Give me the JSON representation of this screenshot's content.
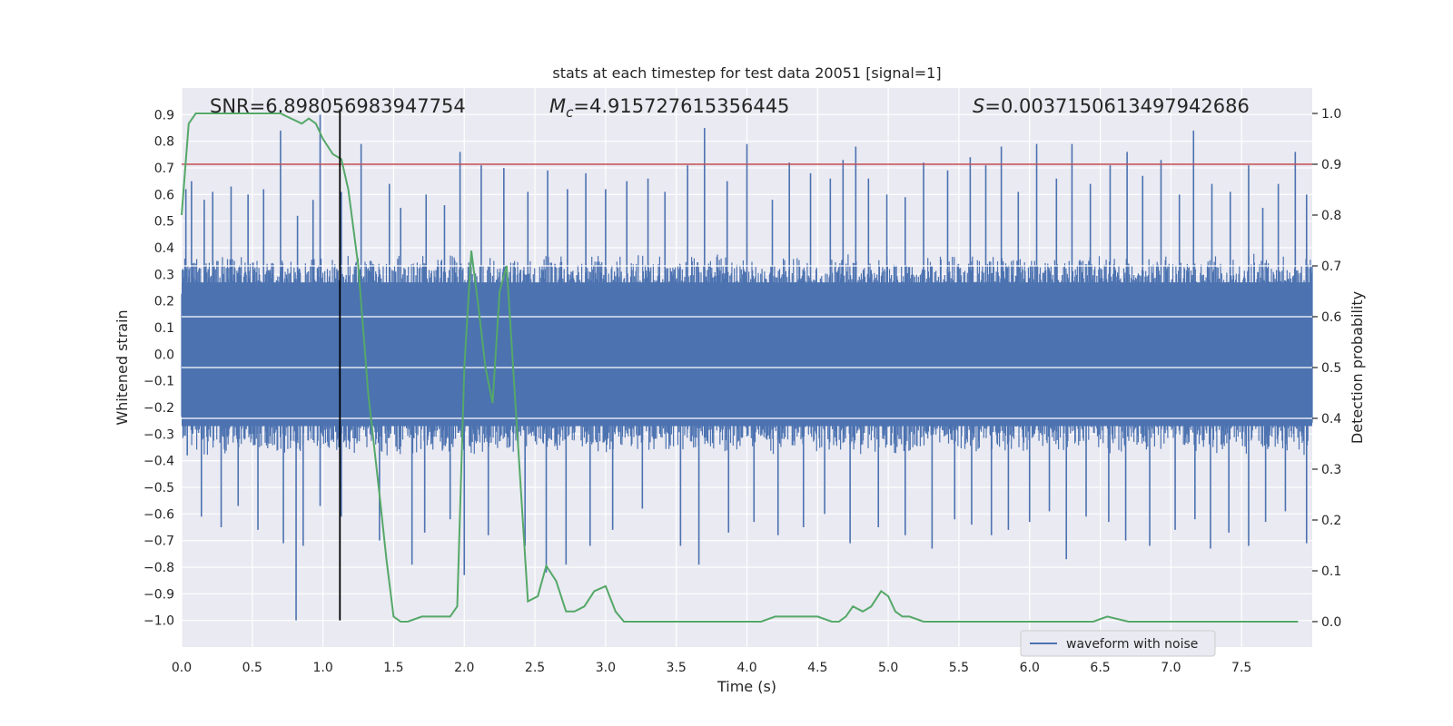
{
  "chart_data": {
    "type": "line",
    "title": "stats at each timestep for test data 20051 [signal=1]",
    "xlabel": "Time (s)",
    "ylabel": "Whitened strain",
    "ylabel_right": "Detection probability",
    "xlim": [
      0.0,
      8.0
    ],
    "ylim": [
      -1.1,
      1.0
    ],
    "ylim_right": [
      -0.05,
      1.05
    ],
    "x_ticks": [
      "0.0",
      "0.5",
      "1.0",
      "1.5",
      "2.0",
      "2.5",
      "3.0",
      "3.5",
      "4.0",
      "4.5",
      "5.0",
      "5.5",
      "6.0",
      "6.5",
      "7.0",
      "7.5"
    ],
    "x_tick_values": [
      0.0,
      0.5,
      1.0,
      1.5,
      2.0,
      2.5,
      3.0,
      3.5,
      4.0,
      4.5,
      5.0,
      5.5,
      6.0,
      6.5,
      7.0,
      7.5
    ],
    "y_ticks": [
      "−1.0",
      "−0.9",
      "−0.8",
      "−0.7",
      "−0.6",
      "−0.5",
      "−0.4",
      "−0.3",
      "−0.2",
      "−0.1",
      "0.0",
      "0.1",
      "0.2",
      "0.3",
      "0.4",
      "0.5",
      "0.6",
      "0.7",
      "0.8",
      "0.9"
    ],
    "y_tick_values": [
      -1.0,
      -0.9,
      -0.8,
      -0.7,
      -0.6,
      -0.5,
      -0.4,
      -0.3,
      -0.2,
      -0.1,
      0.0,
      0.1,
      0.2,
      0.3,
      0.4,
      0.5,
      0.6,
      0.7,
      0.8,
      0.9
    ],
    "y_right_ticks": [
      "0.0",
      "0.1",
      "0.2",
      "0.3",
      "0.4",
      "0.5",
      "0.6",
      "0.7",
      "0.8",
      "0.9",
      "1.0"
    ],
    "y_right_tick_values": [
      0.0,
      0.1,
      0.2,
      0.3,
      0.4,
      0.5,
      0.6,
      0.7,
      0.8,
      0.9,
      1.0
    ],
    "annotations": {
      "snr": "SNR=6.898056983947754",
      "mc_symbol": "M",
      "mc_sub": "c",
      "mc_value": "=4.915727615356445",
      "s_symbol": "S",
      "s_value": "=0.0037150613497942686"
    },
    "series": [
      {
        "name": "waveform with noise",
        "kind": "noise-band",
        "color": "#4c72b0",
        "duration": 8.0,
        "band_low": -0.33,
        "band_high": 0.33,
        "spikes_high": [
          [
            0.03,
            0.62
          ],
          [
            0.07,
            0.65
          ],
          [
            0.16,
            0.58
          ],
          [
            0.22,
            0.61
          ],
          [
            0.35,
            0.63
          ],
          [
            0.47,
            0.6
          ],
          [
            0.58,
            0.62
          ],
          [
            0.7,
            0.84
          ],
          [
            0.82,
            0.52
          ],
          [
            0.93,
            0.58
          ],
          [
            0.98,
            0.9
          ],
          [
            1.13,
            0.61
          ],
          [
            1.27,
            0.79
          ],
          [
            1.47,
            0.64
          ],
          [
            1.55,
            0.55
          ],
          [
            1.73,
            0.6
          ],
          [
            1.86,
            0.56
          ],
          [
            1.97,
            0.76
          ],
          [
            2.12,
            0.71
          ],
          [
            2.28,
            0.7
          ],
          [
            2.45,
            0.61
          ],
          [
            2.59,
            0.69
          ],
          [
            2.73,
            0.62
          ],
          [
            2.86,
            0.68
          ],
          [
            3.0,
            0.62
          ],
          [
            3.15,
            0.65
          ],
          [
            3.3,
            0.66
          ],
          [
            3.42,
            0.61
          ],
          [
            3.58,
            0.71
          ],
          [
            3.7,
            0.85
          ],
          [
            3.86,
            0.65
          ],
          [
            4.0,
            0.79
          ],
          [
            4.18,
            0.58
          ],
          [
            4.3,
            0.72
          ],
          [
            4.45,
            0.68
          ],
          [
            4.59,
            0.66
          ],
          [
            4.68,
            0.73
          ],
          [
            4.77,
            0.78
          ],
          [
            4.86,
            0.66
          ],
          [
            4.99,
            0.6
          ],
          [
            5.12,
            0.59
          ],
          [
            5.25,
            0.72
          ],
          [
            5.42,
            0.69
          ],
          [
            5.58,
            0.74
          ],
          [
            5.69,
            0.71
          ],
          [
            5.8,
            0.78
          ],
          [
            5.92,
            0.61
          ],
          [
            6.05,
            0.79
          ],
          [
            6.19,
            0.66
          ],
          [
            6.3,
            0.79
          ],
          [
            6.43,
            0.64
          ],
          [
            6.57,
            0.71
          ],
          [
            6.69,
            0.76
          ],
          [
            6.8,
            0.67
          ],
          [
            6.93,
            0.73
          ],
          [
            7.06,
            0.6
          ],
          [
            7.16,
            0.84
          ],
          [
            7.29,
            0.64
          ],
          [
            7.42,
            0.61
          ],
          [
            7.55,
            0.71
          ],
          [
            7.65,
            0.55
          ],
          [
            7.76,
            0.64
          ],
          [
            7.88,
            0.76
          ],
          [
            7.96,
            0.6
          ]
        ],
        "spikes_low": [
          [
            0.04,
            -0.38
          ],
          [
            0.14,
            -0.61
          ],
          [
            0.28,
            -0.65
          ],
          [
            0.4,
            -0.57
          ],
          [
            0.54,
            -0.66
          ],
          [
            0.72,
            -0.71
          ],
          [
            0.81,
            -1.0
          ],
          [
            0.86,
            -0.72
          ],
          [
            0.98,
            -0.57
          ],
          [
            1.13,
            -0.61
          ],
          [
            1.4,
            -0.7
          ],
          [
            1.63,
            -0.79
          ],
          [
            1.72,
            -0.67
          ],
          [
            1.9,
            -0.62
          ],
          [
            2.0,
            -0.83
          ],
          [
            2.17,
            -0.68
          ],
          [
            2.43,
            -0.72
          ],
          [
            2.58,
            -0.82
          ],
          [
            2.72,
            -0.79
          ],
          [
            2.89,
            -0.72
          ],
          [
            3.05,
            -0.66
          ],
          [
            3.26,
            -0.58
          ],
          [
            3.53,
            -0.72
          ],
          [
            3.66,
            -0.79
          ],
          [
            3.87,
            -0.67
          ],
          [
            4.05,
            -0.63
          ],
          [
            4.22,
            -0.68
          ],
          [
            4.4,
            -0.65
          ],
          [
            4.55,
            -0.6
          ],
          [
            4.73,
            -0.71
          ],
          [
            4.93,
            -0.65
          ],
          [
            5.12,
            -0.68
          ],
          [
            5.31,
            -0.73
          ],
          [
            5.47,
            -0.62
          ],
          [
            5.59,
            -0.64
          ],
          [
            5.73,
            -0.68
          ],
          [
            5.85,
            -0.66
          ],
          [
            6.0,
            -0.63
          ],
          [
            6.14,
            -0.59
          ],
          [
            6.26,
            -0.77
          ],
          [
            6.4,
            -0.61
          ],
          [
            6.56,
            -0.63
          ],
          [
            6.68,
            -0.7
          ],
          [
            6.85,
            -0.72
          ],
          [
            7.03,
            -0.66
          ],
          [
            7.17,
            -0.62
          ],
          [
            7.28,
            -0.73
          ],
          [
            7.41,
            -0.67
          ],
          [
            7.55,
            -0.72
          ],
          [
            7.67,
            -0.63
          ],
          [
            7.81,
            -0.59
          ],
          [
            7.96,
            -0.71
          ]
        ]
      },
      {
        "name": "detection probability",
        "kind": "line",
        "axis": "right",
        "color": "#55a868",
        "x": [
          0.0,
          0.05,
          0.1,
          0.2,
          0.3,
          0.4,
          0.5,
          0.6,
          0.7,
          0.85,
          0.9,
          0.95,
          1.0,
          1.07,
          1.13,
          1.18,
          1.25,
          1.32,
          1.4,
          1.45,
          1.5,
          1.55,
          1.6,
          1.7,
          1.8,
          1.9,
          1.95,
          2.0,
          2.05,
          2.1,
          2.15,
          2.2,
          2.25,
          2.3,
          2.38,
          2.45,
          2.52,
          2.58,
          2.65,
          2.72,
          2.78,
          2.85,
          2.92,
          3.0,
          3.07,
          3.13,
          3.2,
          3.3,
          3.5,
          3.7,
          3.9,
          4.1,
          4.2,
          4.3,
          4.5,
          4.6,
          4.65,
          4.7,
          4.75,
          4.82,
          4.88,
          4.95,
          5.0,
          5.05,
          5.1,
          5.15,
          5.25,
          5.4,
          5.7,
          6.0,
          6.3,
          6.45,
          6.55,
          6.7,
          6.9,
          7.1,
          7.5,
          7.9
        ],
        "y": [
          0.8,
          0.98,
          1.0,
          1.0,
          1.0,
          1.0,
          1.0,
          1.0,
          1.0,
          0.98,
          0.99,
          0.98,
          0.95,
          0.92,
          0.91,
          0.85,
          0.7,
          0.45,
          0.25,
          0.12,
          0.01,
          0.0,
          0.0,
          0.01,
          0.01,
          0.01,
          0.03,
          0.5,
          0.73,
          0.62,
          0.5,
          0.43,
          0.65,
          0.7,
          0.35,
          0.04,
          0.05,
          0.11,
          0.08,
          0.02,
          0.02,
          0.03,
          0.06,
          0.07,
          0.02,
          0.0,
          0.0,
          0.0,
          0.0,
          0.0,
          0.0,
          0.0,
          0.01,
          0.01,
          0.01,
          0.0,
          0.0,
          0.01,
          0.03,
          0.02,
          0.03,
          0.06,
          0.05,
          0.02,
          0.01,
          0.01,
          0.0,
          0.0,
          0.0,
          0.0,
          0.0,
          0.0,
          0.01,
          0.0,
          0.0,
          0.0,
          0.0,
          0.0
        ]
      },
      {
        "name": "threshold",
        "kind": "hline",
        "axis": "right",
        "color": "#c44e52",
        "y": 0.9
      },
      {
        "name": "event-time",
        "kind": "vline",
        "color": "#000000",
        "x": 1.12,
        "ymin": -1.0,
        "ymax": 0.92
      }
    ],
    "legend": {
      "position": "lower-right",
      "entries": [
        "waveform with noise"
      ]
    },
    "colors": {
      "plot_bg": "#eaeaf2",
      "grid": "#ffffff",
      "waveform": "#4c72b0",
      "probability": "#55a868",
      "threshold": "#c44e52",
      "event": "#000000"
    }
  }
}
